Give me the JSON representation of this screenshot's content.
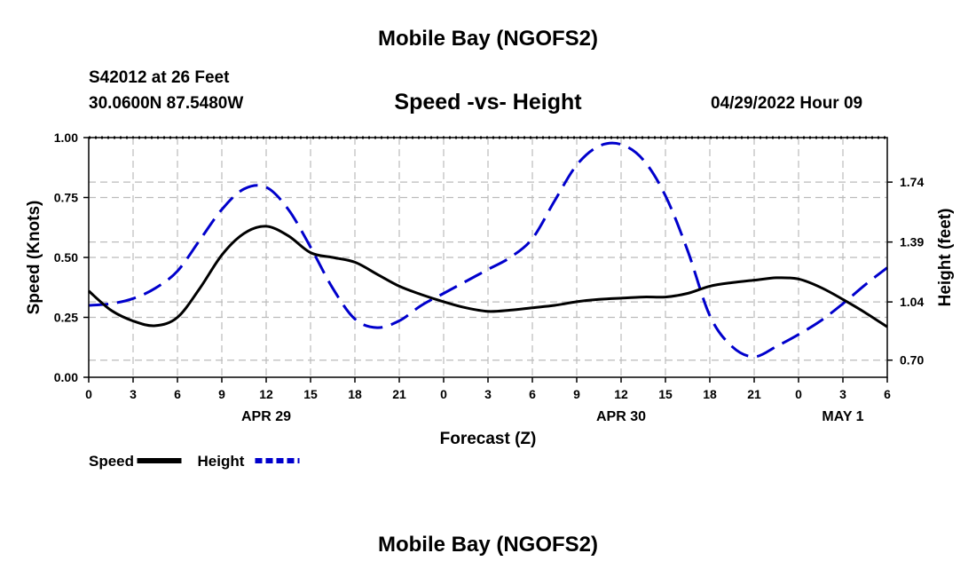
{
  "header": {
    "title": "Mobile Bay (NGOFS2)",
    "station": "S42012 at 26 Feet",
    "coords": "30.0600N  87.5480W",
    "datetime": "04/29/2022 Hour 09"
  },
  "footer": {
    "title": "Mobile Bay (NGOFS2)"
  },
  "chart_data": {
    "type": "line",
    "title": "Speed -vs- Height",
    "xlabel": "Forecast (Z)",
    "ylabel": "Speed (Knots)",
    "y2label": "Height (feet)",
    "x_hours_range": [
      0,
      54
    ],
    "ylim": [
      0,
      1.0
    ],
    "y2lim": [
      0.6,
      2.0
    ],
    "x_ticks": [
      {
        "hour": 0,
        "label": "0"
      },
      {
        "hour": 3,
        "label": "3"
      },
      {
        "hour": 6,
        "label": "6"
      },
      {
        "hour": 9,
        "label": "9"
      },
      {
        "hour": 12,
        "label": "12"
      },
      {
        "hour": 15,
        "label": "15"
      },
      {
        "hour": 18,
        "label": "18"
      },
      {
        "hour": 21,
        "label": "21"
      },
      {
        "hour": 24,
        "label": "0"
      },
      {
        "hour": 27,
        "label": "3"
      },
      {
        "hour": 30,
        "label": "6"
      },
      {
        "hour": 33,
        "label": "9"
      },
      {
        "hour": 36,
        "label": "12"
      },
      {
        "hour": 39,
        "label": "15"
      },
      {
        "hour": 42,
        "label": "18"
      },
      {
        "hour": 45,
        "label": "21"
      },
      {
        "hour": 48,
        "label": "0"
      },
      {
        "hour": 51,
        "label": "3"
      },
      {
        "hour": 54,
        "label": "6"
      }
    ],
    "date_labels": [
      {
        "hour": 12,
        "label": "APR 29"
      },
      {
        "hour": 36,
        "label": "APR 30"
      },
      {
        "hour": 51,
        "label": "MAY 1"
      }
    ],
    "y_ticks": [
      {
        "value": 0,
        "label": "0.00"
      },
      {
        "value": 0.25,
        "label": "0.25"
      },
      {
        "value": 0.5,
        "label": "0.50"
      },
      {
        "value": 0.75,
        "label": "0.75"
      },
      {
        "value": 1.0,
        "label": "1.00"
      }
    ],
    "y2_ticks": [
      {
        "value": 0.7,
        "label": "0.70"
      },
      {
        "value": 1.04,
        "label": "1.04"
      },
      {
        "value": 1.39,
        "label": "1.39"
      },
      {
        "value": 1.74,
        "label": "1.74"
      }
    ],
    "series": [
      {
        "name": "Speed",
        "axis": "left",
        "color": "#000000",
        "dash": "",
        "hours": [
          0,
          1.5,
          3,
          4.5,
          6,
          7.5,
          9,
          10.5,
          12,
          13.5,
          15,
          16.5,
          18,
          19.5,
          21,
          22.5,
          24,
          25.5,
          27,
          28.5,
          30,
          31.5,
          33,
          34.5,
          36,
          37.5,
          39,
          40.5,
          42,
          43.5,
          45,
          46.5,
          48,
          49.5,
          51,
          52.5,
          54
        ],
        "values": [
          0.36,
          0.28,
          0.235,
          0.215,
          0.25,
          0.37,
          0.51,
          0.6,
          0.63,
          0.59,
          0.52,
          0.5,
          0.48,
          0.43,
          0.38,
          0.345,
          0.315,
          0.29,
          0.275,
          0.28,
          0.29,
          0.3,
          0.315,
          0.325,
          0.33,
          0.335,
          0.335,
          0.35,
          0.38,
          0.395,
          0.405,
          0.415,
          0.41,
          0.375,
          0.325,
          0.27,
          0.21
        ]
      },
      {
        "name": "Height",
        "axis": "right",
        "color": "#0000cc",
        "dash": "22 10",
        "hours": [
          0,
          1.5,
          3,
          4.5,
          6,
          7.5,
          9,
          10.5,
          12,
          13.5,
          15,
          16.5,
          18,
          19.5,
          21,
          22.5,
          24,
          25.5,
          27,
          28.5,
          30,
          31.5,
          33,
          34.5,
          36,
          37.5,
          39,
          40.5,
          42,
          43.5,
          45,
          46.5,
          48,
          49.5,
          51,
          52.5,
          54
        ],
        "values": [
          1.02,
          1.03,
          1.06,
          1.12,
          1.22,
          1.4,
          1.58,
          1.7,
          1.71,
          1.58,
          1.36,
          1.12,
          0.94,
          0.89,
          0.93,
          1.02,
          1.09,
          1.16,
          1.23,
          1.3,
          1.41,
          1.63,
          1.84,
          1.95,
          1.96,
          1.87,
          1.66,
          1.34,
          0.96,
          0.78,
          0.72,
          0.78,
          0.85,
          0.93,
          1.03,
          1.14,
          1.24
        ]
      }
    ],
    "legend": [
      {
        "label": "Speed",
        "color": "#000000",
        "dash": ""
      },
      {
        "label": "Height",
        "color": "#0000cc",
        "dash": "8 4"
      }
    ]
  }
}
